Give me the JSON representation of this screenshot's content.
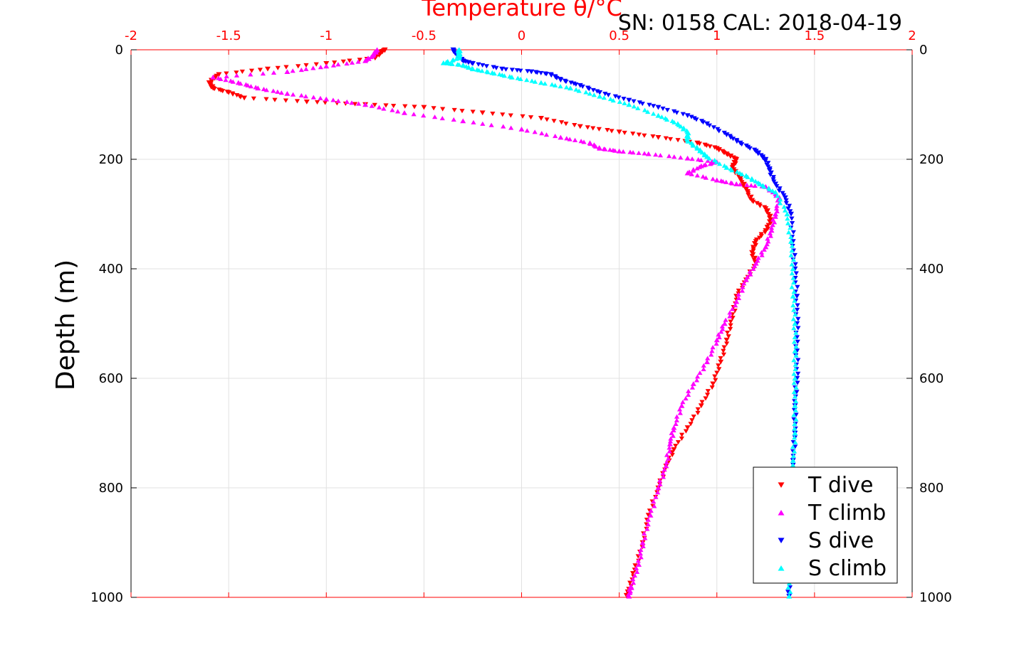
{
  "header": {
    "text": "SN: 0158  CAL: 2018-04-19"
  },
  "chart_data": {
    "type": "scatter",
    "title": "Temperature θ/°C",
    "xlabel": "Temperature θ/°C",
    "ylabel": "Depth (m)",
    "xlim": [
      -2,
      2
    ],
    "ylim": [
      0,
      1000
    ],
    "y_reversed": true,
    "x_ticks": [
      "-2",
      "-1.5",
      "-1",
      "-0.5",
      "0",
      "0.5",
      "1",
      "1.5",
      "2"
    ],
    "y_ticks": [
      "0",
      "200",
      "400",
      "600",
      "800",
      "1000"
    ],
    "x_axis_color": "#ff0000",
    "grid": true,
    "legend_position": "lower-right",
    "series": [
      {
        "name": "T dive",
        "color": "#ff0000",
        "marker": "triangle-down",
        "points": [
          [
            -0.7,
            0
          ],
          [
            -0.72,
            5
          ],
          [
            -0.75,
            15
          ],
          [
            -1.0,
            25
          ],
          [
            -1.3,
            35
          ],
          [
            -1.55,
            45
          ],
          [
            -1.6,
            60
          ],
          [
            -1.58,
            70
          ],
          [
            -1.5,
            78
          ],
          [
            -1.42,
            88
          ],
          [
            -1.1,
            95
          ],
          [
            -0.8,
            100
          ],
          [
            -0.5,
            105
          ],
          [
            -0.2,
            115
          ],
          [
            0.1,
            125
          ],
          [
            0.3,
            140
          ],
          [
            0.5,
            150
          ],
          [
            0.7,
            160
          ],
          [
            0.9,
            170
          ],
          [
            1.0,
            180
          ],
          [
            1.05,
            190
          ],
          [
            1.1,
            200
          ],
          [
            1.08,
            215
          ],
          [
            1.12,
            235
          ],
          [
            1.15,
            255
          ],
          [
            1.18,
            275
          ],
          [
            1.25,
            290
          ],
          [
            1.28,
            310
          ],
          [
            1.25,
            330
          ],
          [
            1.2,
            350
          ],
          [
            1.18,
            370
          ],
          [
            1.2,
            390
          ],
          [
            1.15,
            420
          ],
          [
            1.1,
            450
          ],
          [
            1.08,
            490
          ],
          [
            1.05,
            530
          ],
          [
            1.02,
            570
          ],
          [
            0.98,
            610
          ],
          [
            0.92,
            650
          ],
          [
            0.85,
            690
          ],
          [
            0.78,
            730
          ],
          [
            0.74,
            760
          ],
          [
            0.7,
            800
          ],
          [
            0.65,
            850
          ],
          [
            0.62,
            900
          ],
          [
            0.58,
            950
          ],
          [
            0.55,
            985
          ],
          [
            0.54,
            998
          ]
        ]
      },
      {
        "name": "T climb",
        "color": "#ff00ff",
        "marker": "triangle-up",
        "points": [
          [
            0.55,
            998
          ],
          [
            0.56,
            980
          ],
          [
            0.6,
            940
          ],
          [
            0.62,
            900
          ],
          [
            0.66,
            850
          ],
          [
            0.7,
            800
          ],
          [
            0.74,
            760
          ],
          [
            0.76,
            720
          ],
          [
            0.78,
            690
          ],
          [
            0.82,
            650
          ],
          [
            0.88,
            610
          ],
          [
            0.95,
            570
          ],
          [
            1.0,
            530
          ],
          [
            1.04,
            500
          ],
          [
            1.1,
            460
          ],
          [
            1.15,
            420
          ],
          [
            1.2,
            390
          ],
          [
            1.25,
            360
          ],
          [
            1.28,
            330
          ],
          [
            1.3,
            300
          ],
          [
            1.32,
            270
          ],
          [
            1.25,
            250
          ],
          [
            1.1,
            245
          ],
          [
            1.0,
            238
          ],
          [
            0.85,
            225
          ],
          [
            0.92,
            212
          ],
          [
            1.0,
            205
          ],
          [
            0.85,
            198
          ],
          [
            0.65,
            190
          ],
          [
            0.5,
            185
          ],
          [
            0.4,
            180
          ],
          [
            0.35,
            170
          ],
          [
            0.2,
            160
          ],
          [
            0.0,
            145
          ],
          [
            -0.3,
            130
          ],
          [
            -0.6,
            115
          ],
          [
            -0.8,
            100
          ],
          [
            -1.0,
            90
          ],
          [
            -1.2,
            80
          ],
          [
            -1.35,
            70
          ],
          [
            -1.45,
            60
          ],
          [
            -1.58,
            50
          ],
          [
            -1.2,
            40
          ],
          [
            -1.0,
            30
          ],
          [
            -0.8,
            20
          ],
          [
            -0.76,
            10
          ],
          [
            -0.74,
            0
          ]
        ]
      },
      {
        "name": "S dive",
        "color": "#0000ff",
        "marker": "triangle-down",
        "points": [
          [
            -0.35,
            0
          ],
          [
            -0.33,
            10
          ],
          [
            -0.3,
            20
          ],
          [
            -0.25,
            25
          ],
          [
            -0.1,
            35
          ],
          [
            0.05,
            40
          ],
          [
            0.15,
            45
          ],
          [
            0.2,
            55
          ],
          [
            0.3,
            65
          ],
          [
            0.4,
            78
          ],
          [
            0.55,
            92
          ],
          [
            0.7,
            105
          ],
          [
            0.85,
            120
          ],
          [
            0.95,
            135
          ],
          [
            1.05,
            155
          ],
          [
            1.12,
            170
          ],
          [
            1.2,
            185
          ],
          [
            1.25,
            200
          ],
          [
            1.27,
            220
          ],
          [
            1.3,
            245
          ],
          [
            1.35,
            270
          ],
          [
            1.38,
            300
          ],
          [
            1.39,
            350
          ],
          [
            1.4,
            400
          ],
          [
            1.41,
            450
          ],
          [
            1.41,
            500
          ],
          [
            1.41,
            550
          ],
          [
            1.41,
            600
          ],
          [
            1.4,
            650
          ],
          [
            1.4,
            700
          ],
          [
            1.39,
            750
          ],
          [
            1.39,
            800
          ],
          [
            1.38,
            850
          ],
          [
            1.38,
            900
          ],
          [
            1.37,
            950
          ],
          [
            1.37,
            998
          ]
        ]
      },
      {
        "name": "S climb",
        "color": "#00ffff",
        "marker": "triangle-up",
        "points": [
          [
            1.37,
            998
          ],
          [
            1.37,
            950
          ],
          [
            1.38,
            900
          ],
          [
            1.38,
            850
          ],
          [
            1.39,
            800
          ],
          [
            1.39,
            750
          ],
          [
            1.4,
            700
          ],
          [
            1.4,
            650
          ],
          [
            1.4,
            600
          ],
          [
            1.4,
            550
          ],
          [
            1.4,
            500
          ],
          [
            1.39,
            450
          ],
          [
            1.39,
            400
          ],
          [
            1.38,
            350
          ],
          [
            1.36,
            300
          ],
          [
            1.3,
            260
          ],
          [
            1.22,
            245
          ],
          [
            1.15,
            230
          ],
          [
            1.05,
            215
          ],
          [
            0.95,
            195
          ],
          [
            0.9,
            180
          ],
          [
            0.85,
            165
          ],
          [
            0.85,
            150
          ],
          [
            0.8,
            135
          ],
          [
            0.7,
            120
          ],
          [
            0.55,
            100
          ],
          [
            0.4,
            85
          ],
          [
            0.25,
            70
          ],
          [
            0.1,
            60
          ],
          [
            -0.05,
            50
          ],
          [
            -0.15,
            42
          ],
          [
            -0.25,
            35
          ],
          [
            -0.3,
            28
          ],
          [
            -0.4,
            24
          ],
          [
            -0.32,
            15
          ],
          [
            -0.32,
            5
          ],
          [
            -0.32,
            0
          ]
        ]
      }
    ]
  }
}
